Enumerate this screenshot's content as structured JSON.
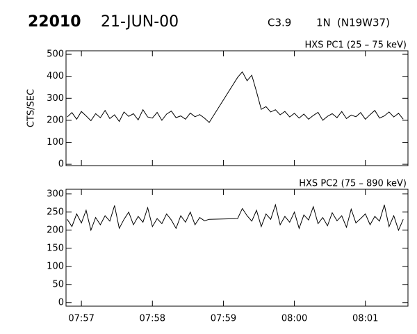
{
  "header": {
    "event": "22010",
    "date": "21-JUN-00",
    "class": "C3.9",
    "importance": "1N",
    "location": "(N19W37)"
  },
  "chart_data": [
    {
      "type": "line",
      "title": "HXS PC1 (25 – 75 keV)",
      "ylabel": "CTS/SEC",
      "x": [
        28608,
        28612,
        28616,
        28620,
        28624,
        28628,
        28632,
        28636,
        28640,
        28644,
        28648,
        28652,
        28656,
        28660,
        28664,
        28668,
        28672,
        28676,
        28680,
        28684,
        28688,
        28692,
        28696,
        28700,
        28704,
        28708,
        28712,
        28716,
        28720,
        28724,
        28728,
        28752,
        28756,
        28760,
        28764,
        28768,
        28772,
        28776,
        28780,
        28784,
        28788,
        28792,
        28796,
        28800,
        28804,
        28808,
        28812,
        28816,
        28820,
        28824,
        28828,
        28832,
        28836,
        28840,
        28844,
        28848,
        28852,
        28856,
        28860,
        28864,
        28868,
        28872,
        28876,
        28880,
        28884,
        28888,
        28892
      ],
      "series": [
        {
          "color": "#000000",
          "values": [
            215,
            235,
            205,
            240,
            220,
            198,
            230,
            212,
            245,
            208,
            225,
            195,
            238,
            218,
            230,
            202,
            248,
            215,
            210,
            236,
            200,
            228,
            242,
            212,
            220,
            205,
            233,
            216,
            226,
            210,
            190,
            395,
            420,
            380,
            405,
            330,
            250,
            262,
            238,
            248,
            225,
            240,
            215,
            232,
            210,
            228,
            205,
            222,
            236,
            200,
            218,
            230,
            212,
            240,
            208,
            224,
            216,
            235,
            205,
            226,
            245,
            210,
            220,
            238,
            215,
            232,
            205
          ]
        }
      ],
      "xlim": [
        28607,
        28896
      ],
      "ylim": [
        -6,
        516
      ],
      "yticks": [
        0,
        100,
        200,
        300,
        400,
        500
      ]
    },
    {
      "type": "line",
      "title": "HXS PC2 (75 – 890 keV)",
      "x": [
        28608,
        28612,
        28616,
        28620,
        28624,
        28628,
        28632,
        28636,
        28640,
        28644,
        28648,
        28652,
        28656,
        28660,
        28664,
        28668,
        28672,
        28676,
        28680,
        28684,
        28688,
        28692,
        28696,
        28700,
        28704,
        28708,
        28712,
        28716,
        28720,
        28724,
        28728,
        28752,
        28756,
        28760,
        28764,
        28768,
        28772,
        28776,
        28780,
        28784,
        28788,
        28792,
        28796,
        28800,
        28804,
        28808,
        28812,
        28816,
        28820,
        28824,
        28828,
        28832,
        28836,
        28840,
        28844,
        28848,
        28852,
        28856,
        28860,
        28864,
        28868,
        28872,
        28876,
        28880,
        28884,
        28888,
        28892
      ],
      "series": [
        {
          "color": "#000000",
          "values": [
            230,
            210,
            245,
            220,
            255,
            200,
            235,
            215,
            240,
            225,
            268,
            205,
            230,
            250,
            215,
            238,
            222,
            262,
            210,
            232,
            218,
            245,
            228,
            205,
            240,
            222,
            250,
            215,
            235,
            226,
            230,
            232,
            260,
            240,
            225,
            255,
            210,
            245,
            230,
            270,
            215,
            238,
            222,
            250,
            205,
            242,
            228,
            265,
            218,
            235,
            212,
            248,
            226,
            240,
            208,
            258,
            220,
            232,
            245,
            215,
            238,
            225,
            270,
            210,
            240,
            200,
            230
          ]
        }
      ],
      "xlim": [
        28607,
        28896
      ],
      "ylim": [
        -10,
        313
      ],
      "yticks": [
        0,
        50,
        100,
        150,
        200,
        250,
        300
      ],
      "xticks": [
        {
          "value": 28620,
          "label": "07:57"
        },
        {
          "value": 28680,
          "label": "07:58"
        },
        {
          "value": 28740,
          "label": "07:59"
        },
        {
          "value": 28800,
          "label": "08:00"
        },
        {
          "value": 28860,
          "label": "08:01"
        }
      ]
    }
  ]
}
